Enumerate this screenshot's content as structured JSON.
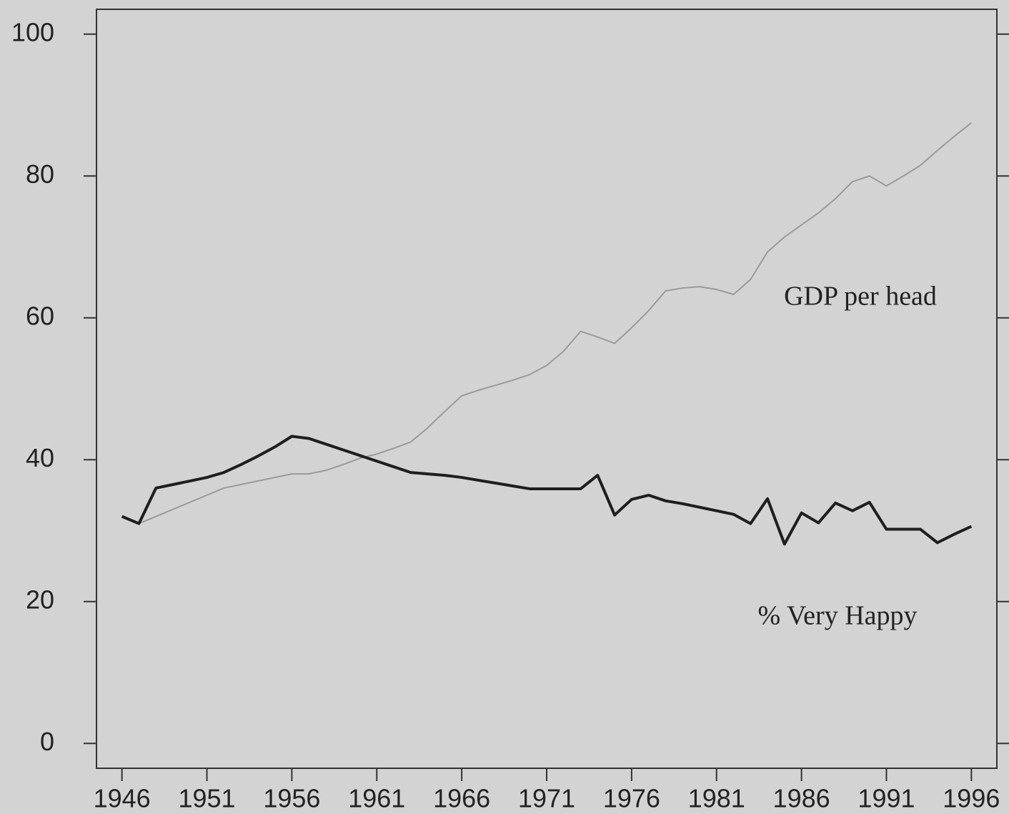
{
  "chart_data": {
    "type": "line",
    "x": [
      1946,
      1947,
      1948,
      1949,
      1950,
      1951,
      1952,
      1953,
      1954,
      1955,
      1956,
      1957,
      1958,
      1959,
      1960,
      1961,
      1962,
      1963,
      1964,
      1965,
      1966,
      1967,
      1968,
      1969,
      1970,
      1971,
      1972,
      1973,
      1974,
      1975,
      1976,
      1977,
      1978,
      1979,
      1980,
      1981,
      1982,
      1983,
      1984,
      1985,
      1986,
      1987,
      1988,
      1989,
      1990,
      1991,
      1992,
      1993,
      1994,
      1995,
      1996
    ],
    "series": [
      {
        "name": "GDP per head",
        "color": "#9a9a9a",
        "values": [
          32,
          31,
          32,
          33,
          34,
          35,
          36,
          36.5,
          37,
          37.5,
          38,
          38,
          38.5,
          39.3,
          40.2,
          40.8,
          41.6,
          42.5,
          44.5,
          46.8,
          49,
          49.8,
          50.5,
          51.2,
          52,
          53.3,
          55.3,
          58.1,
          57.3,
          56.4,
          58.6,
          61,
          63.8,
          64.2,
          64.4,
          64,
          63.3,
          65.4,
          69.3,
          71.4,
          73.1,
          74.8,
          76.8,
          79.2,
          80,
          78.6,
          80,
          81.5,
          83.6,
          85.6,
          87.5
        ]
      },
      {
        "name": "% Very Happy",
        "color": "#1e1e1e",
        "values": [
          32,
          31,
          36,
          36.5,
          37,
          37.5,
          38.2,
          39.3,
          40.5,
          41.8,
          43.3,
          43,
          42.2,
          41.4,
          40.6,
          39.8,
          39,
          38.2,
          38,
          37.8,
          37.5,
          37.1,
          36.7,
          36.3,
          35.9,
          35.9,
          35.9,
          35.9,
          37.8,
          32.2,
          34.4,
          35,
          34.2,
          33.8,
          33.3,
          32.8,
          32.3,
          31,
          34.5,
          28.1,
          32.5,
          31.1,
          33.9,
          32.8,
          34,
          30.2,
          30.2,
          30.2,
          28.3,
          29.5,
          30.6
        ]
      }
    ],
    "xlim": [
      1944.5,
      1997.5
    ],
    "xticks": [
      1946,
      1951,
      1956,
      1961,
      1966,
      1971,
      1976,
      1981,
      1986,
      1991,
      1996
    ],
    "ylim": [
      -3.5,
      103.5
    ],
    "yticks": [
      0,
      20,
      40,
      60,
      80,
      100
    ]
  }
}
